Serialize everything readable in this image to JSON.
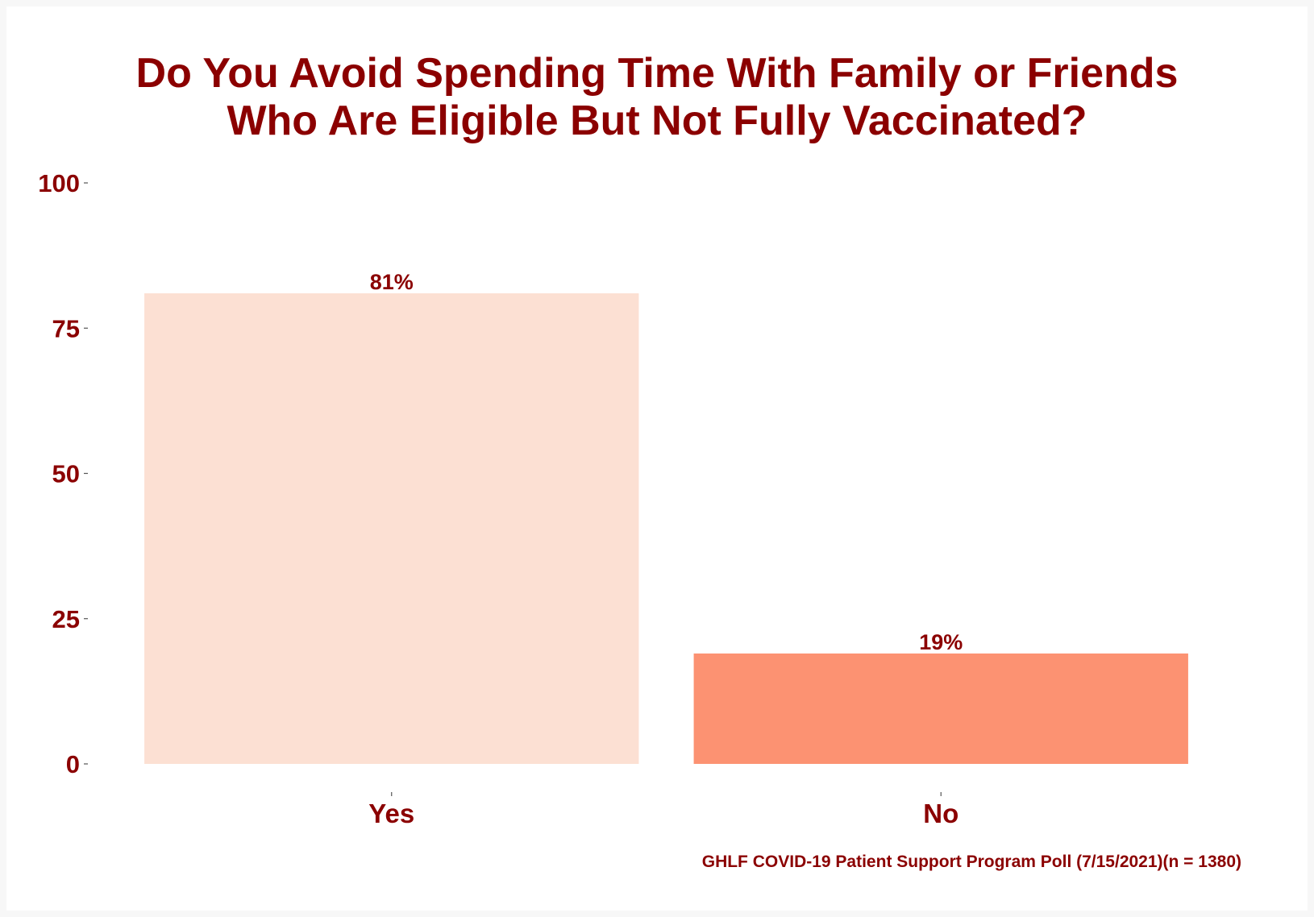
{
  "chart_data": {
    "type": "bar",
    "title_lines": [
      "Do You Avoid Spending Time With Family or Friends",
      "Who Are Eligible But Not Fully Vaccinated?"
    ],
    "categories": [
      "Yes",
      "No"
    ],
    "values": [
      81,
      19
    ],
    "data_labels": [
      "81%",
      "19%"
    ],
    "bar_colors": [
      "#fce0d3",
      "#fc9272"
    ],
    "ylim": [
      0,
      100
    ],
    "yticks": [
      0,
      25,
      50,
      75,
      100
    ],
    "xlabel": "",
    "ylabel": "",
    "grid": false,
    "legend": "none",
    "caption": "GHLF COVID-19 Patient Support Program Poll (7/15/2021)(n = 1380)"
  }
}
